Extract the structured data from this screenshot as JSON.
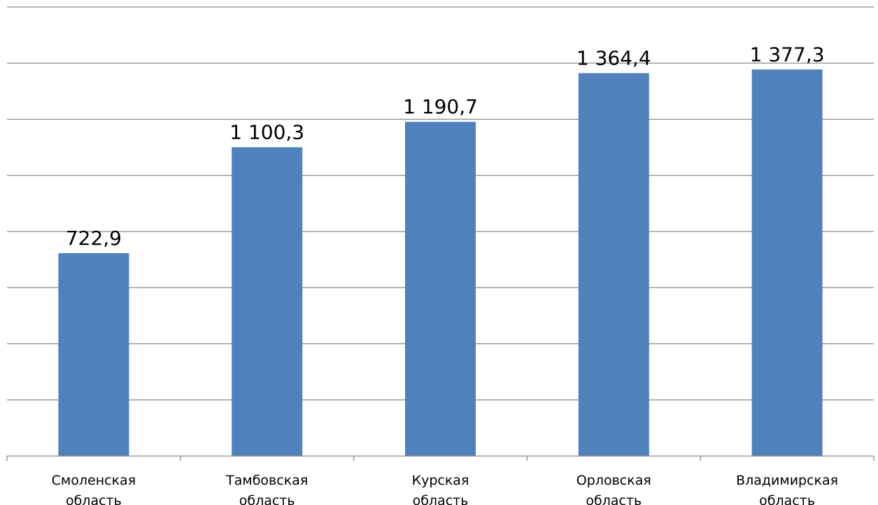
{
  "chart_data": {
    "type": "bar",
    "categories": [
      [
        "Смоленская",
        "область"
      ],
      [
        "Тамбовская",
        "область"
      ],
      [
        "Курская",
        "область"
      ],
      [
        "Орловская",
        "область"
      ],
      [
        "Владимирская",
        "область"
      ]
    ],
    "values": [
      722.9,
      1100.3,
      1190.7,
      1364.4,
      1377.3
    ],
    "value_labels": [
      "722,9",
      "1 100,3",
      "1 190,7",
      "1 364,4",
      "1 377,3"
    ],
    "ylim": [
      0,
      1600
    ],
    "grid_step": 200,
    "grid": true,
    "bar_color": "#4f81bd",
    "gridline_color": "#8c8c8c"
  }
}
